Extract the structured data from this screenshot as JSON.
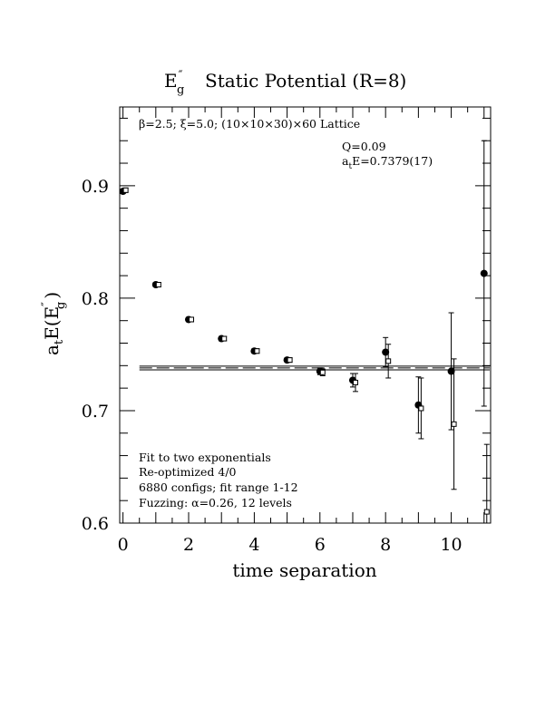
{
  "chart_data": {
    "type": "scatter",
    "title": {
      "prefix": "E",
      "prime": "″",
      "sub": "g",
      "rest": "Static Potential (R=8)"
    },
    "xlabel": "time separation",
    "ylabel": {
      "a": "a",
      "t": "t",
      "mid": "E(E",
      "prime": "″",
      "sub": "g",
      "end": ")"
    },
    "xlim": [
      -0.1,
      11.2
    ],
    "ylim": [
      0.6,
      0.97
    ],
    "x_ticks": [
      "0",
      "2",
      "4",
      "6",
      "8",
      "10"
    ],
    "y_ticks": [
      "0.6",
      "0.7",
      "0.8",
      "0.9"
    ],
    "header_text": "β=2.5; ξ=5.0; (10×10×30)×60 Lattice",
    "q_text": "Q=0.09",
    "energy_text": {
      "a": "a",
      "t": "t",
      "rest": "E=0.7379(17)"
    },
    "fit_lines": [
      "Fit to two exponentials",
      "Re-optimized 4/0",
      "6880 configs; fit range 1-12",
      "Fuzzing: α=0.26, 12 levels"
    ],
    "fit_band": {
      "center": 0.7379,
      "error": 0.0017,
      "x_range": [
        0.5,
        11.2
      ]
    },
    "series": [
      {
        "marker": "filled-circle",
        "points": [
          {
            "x": 0,
            "y": 0.895,
            "err": 0.002
          },
          {
            "x": 1,
            "y": 0.812,
            "err": 0.002
          },
          {
            "x": 2,
            "y": 0.781,
            "err": 0.002
          },
          {
            "x": 3,
            "y": 0.764,
            "err": 0.002
          },
          {
            "x": 4,
            "y": 0.753,
            "err": 0.002
          },
          {
            "x": 5,
            "y": 0.745,
            "err": 0.002
          },
          {
            "x": 6,
            "y": 0.735,
            "err": 0.003
          },
          {
            "x": 7,
            "y": 0.727,
            "err": 0.006
          },
          {
            "x": 8,
            "y": 0.752,
            "err": 0.013
          },
          {
            "x": 9,
            "y": 0.705,
            "err": 0.025
          },
          {
            "x": 10,
            "y": 0.735,
            "err": 0.052
          },
          {
            "x": 11,
            "y": 0.822,
            "err": 0.118
          }
        ]
      },
      {
        "marker": "open-square",
        "points": [
          {
            "x": 0,
            "y": 0.896,
            "err": 0.002
          },
          {
            "x": 1,
            "y": 0.812,
            "err": 0.002
          },
          {
            "x": 2,
            "y": 0.781,
            "err": 0.002
          },
          {
            "x": 3,
            "y": 0.764,
            "err": 0.002
          },
          {
            "x": 4,
            "y": 0.753,
            "err": 0.002
          },
          {
            "x": 5,
            "y": 0.745,
            "err": 0.002
          },
          {
            "x": 6,
            "y": 0.734,
            "err": 0.003
          },
          {
            "x": 7,
            "y": 0.725,
            "err": 0.008
          },
          {
            "x": 8,
            "y": 0.744,
            "err": 0.015
          },
          {
            "x": 9,
            "y": 0.702,
            "err": 0.027
          },
          {
            "x": 10,
            "y": 0.688,
            "err": 0.058
          },
          {
            "x": 11,
            "y": 0.61,
            "err": 0.06
          }
        ]
      }
    ]
  }
}
